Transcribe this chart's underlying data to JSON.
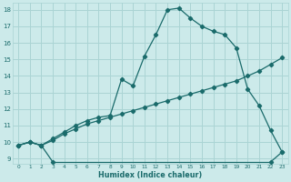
{
  "xlabel": "Humidex (Indice chaleur)",
  "bg_color": "#cceaea",
  "grid_color": "#aad4d4",
  "line_color": "#1a6b6b",
  "xlim": [
    -0.5,
    23.5
  ],
  "ylim": [
    8.7,
    18.4
  ],
  "xticks": [
    0,
    1,
    2,
    3,
    4,
    5,
    6,
    7,
    8,
    9,
    10,
    11,
    12,
    13,
    14,
    15,
    16,
    17,
    18,
    19,
    20,
    21,
    22,
    23
  ],
  "yticks": [
    9,
    10,
    11,
    12,
    13,
    14,
    15,
    16,
    17,
    18
  ],
  "line_flat_x": [
    0,
    1,
    2,
    3,
    22,
    23
  ],
  "line_flat_y": [
    9.8,
    10.0,
    9.8,
    8.8,
    8.8,
    9.4
  ],
  "line_diag_x": [
    0,
    1,
    2,
    3,
    4,
    5,
    6,
    7,
    8,
    9,
    10,
    11,
    12,
    13,
    14,
    15,
    16,
    17,
    18,
    19,
    20,
    21,
    22,
    23
  ],
  "line_diag_y": [
    9.8,
    10.0,
    9.8,
    10.1,
    10.5,
    10.8,
    11.1,
    11.3,
    11.5,
    11.7,
    11.9,
    12.1,
    12.3,
    12.5,
    12.7,
    12.9,
    13.1,
    13.3,
    13.5,
    13.7,
    14.0,
    14.3,
    14.7,
    15.1
  ],
  "line_peak_x": [
    0,
    1,
    2,
    3,
    4,
    5,
    6,
    7,
    8,
    9,
    10,
    11,
    12,
    13,
    14,
    15,
    16,
    17,
    18,
    19,
    20,
    21,
    22,
    23
  ],
  "line_peak_y": [
    9.8,
    10.0,
    9.8,
    10.2,
    10.6,
    11.0,
    11.3,
    11.5,
    11.6,
    13.8,
    13.4,
    15.2,
    16.5,
    18.0,
    18.1,
    17.5,
    17.0,
    16.7,
    16.5,
    15.7,
    13.2,
    12.2,
    10.7,
    9.4
  ]
}
